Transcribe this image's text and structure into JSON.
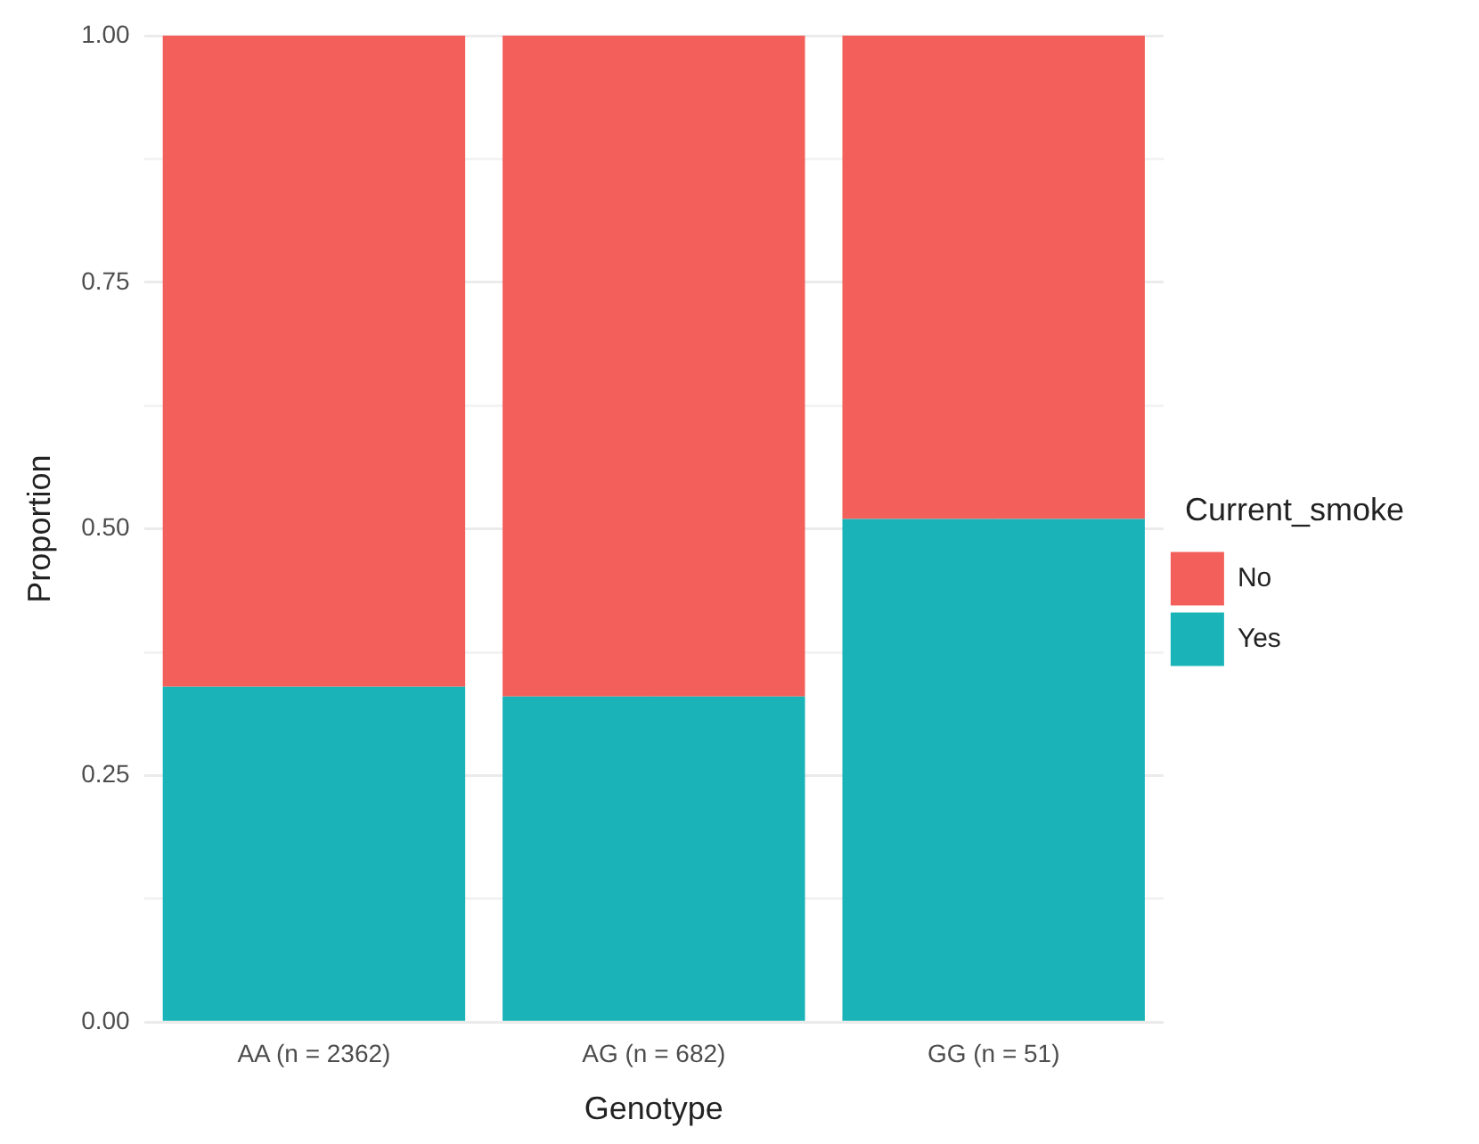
{
  "chart_data": {
    "type": "bar",
    "stacked": true,
    "xlabel": "Genotype",
    "ylabel": "Proportion",
    "legend_title": "Current_smoke",
    "categories": [
      "AA (n = 2362)",
      "AG (n = 682)",
      "GG (n = 51)"
    ],
    "series": [
      {
        "name": "Yes",
        "color": "#19b3b8",
        "values": [
          0.34,
          0.33,
          0.51
        ]
      },
      {
        "name": "No",
        "color": "#f3605b",
        "values": [
          0.66,
          0.67,
          0.49
        ]
      }
    ],
    "ylim": [
      0,
      1
    ],
    "yticks": [
      {
        "value": 0,
        "label": "0.00"
      },
      {
        "value": 0.125,
        "label": null
      },
      {
        "value": 0.25,
        "label": "0.25"
      },
      {
        "value": 0.375,
        "label": null
      },
      {
        "value": 0.5,
        "label": "0.50"
      },
      {
        "value": 0.625,
        "label": null
      },
      {
        "value": 0.75,
        "label": "0.75"
      },
      {
        "value": 0.875,
        "label": null
      },
      {
        "value": 1,
        "label": "1.00"
      }
    ],
    "grid": true,
    "legend": "right"
  }
}
